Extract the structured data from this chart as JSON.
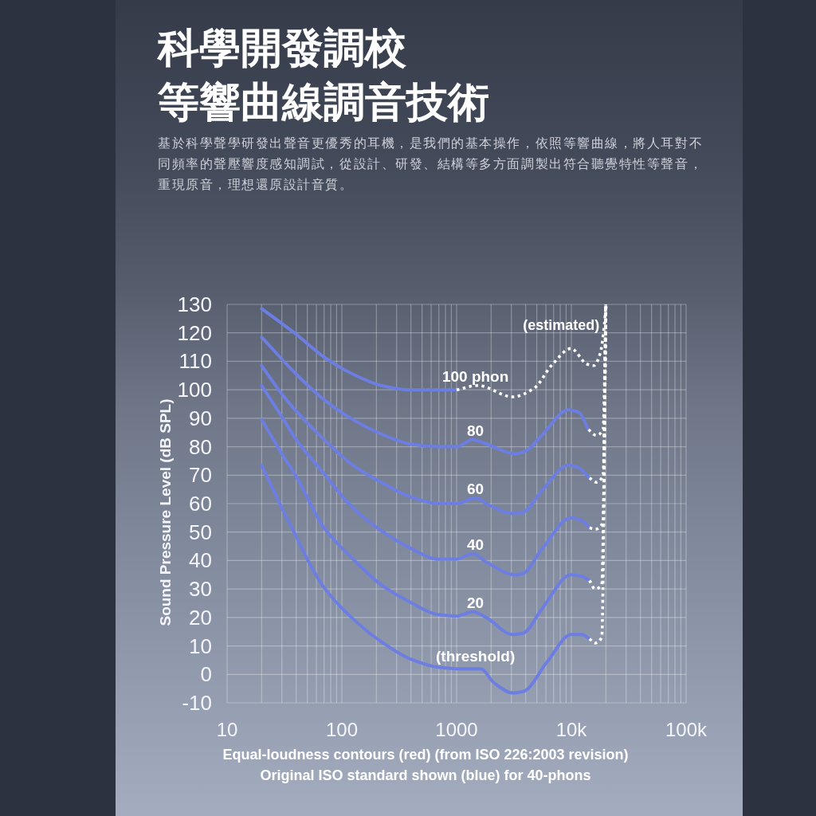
{
  "chart_data": {
    "type": "line",
    "title": "科學開發調校",
    "subtitle": "等響曲線調音技術",
    "annotations": [
      "基於科學聲學研發出聲音更優秀的耳機，是我們的基本操作，依照等響曲線，將人耳對不同頻率的聲壓響度感知調試，從設計、研發、結構等多方面調製出符合聽覺特性等聲音，重現原音，理想還原設計音質。",
      "Equal-loudness contours (red) (from ISO 226:2003 revision)",
      "Original ISO standard shown (blue) for 40-phons"
    ],
    "ylabel": "Sound Pressure Level (dB SPL)",
    "log": "x",
    "xlim": [
      10,
      100000
    ],
    "xticks": [
      10,
      100,
      1000,
      {
        "value": 10000,
        "label": "10k"
      },
      {
        "value": 100000,
        "label": "100k"
      }
    ],
    "ylim": [
      -10,
      130
    ],
    "yticks": [
      -10,
      0,
      10,
      20,
      30,
      40,
      50,
      60,
      70,
      80,
      90,
      100,
      110,
      120,
      130
    ],
    "grid": true,
    "series": [
      {
        "name": "100 phon",
        "color": "#6d7ee2",
        "x": [
          20,
          40,
          70,
          125,
          220,
          390,
          1000
        ],
        "values": [
          128.5,
          119.5,
          111.5,
          105.5,
          101.5,
          100,
          100
        ]
      },
      {
        "name": "(estimated)",
        "color": "#ffffff",
        "line_style": "dotted",
        "x": [
          1000,
          1540,
          3080,
          4720,
          6860,
          9950,
          13700,
          15700,
          17900,
          19400,
          20000
        ],
        "values": [
          100,
          101.5,
          97.5,
          100.5,
          109,
          114.5,
          109,
          108.5,
          113,
          123,
          130
        ]
      },
      {
        "name": "80",
        "color": "#6d7ee2",
        "x": [
          20,
          40,
          70,
          125,
          220,
          390,
          690,
          1000,
          1380,
          1810,
          3250,
          4020,
          5530,
          9440,
          11700,
          14100
        ],
        "values": [
          118.5,
          105.5,
          96.5,
          89.5,
          84.5,
          81,
          80,
          80,
          82.5,
          81,
          77.5,
          78.5,
          84,
          93,
          92,
          86
        ]
      },
      {
        "color": "#ffffff",
        "line_style": "dotted",
        "x": [
          14100,
          16500,
          18900,
          20000
        ],
        "values": [
          86,
          84,
          86,
          130
        ]
      },
      {
        "name": "60",
        "color": "#6d7ee2",
        "x": [
          20,
          30,
          40,
          70,
          125,
          220,
          390,
          690,
          1000,
          1460,
          1910,
          3080,
          3810,
          5530,
          9440,
          11700,
          14400
        ],
        "values": [
          108.5,
          98.5,
          92.5,
          82.5,
          73.5,
          67.5,
          62.5,
          60,
          60,
          62,
          59.5,
          56.5,
          57,
          64.5,
          73.5,
          72.5,
          69
        ]
      },
      {
        "color": "#ffffff",
        "line_style": "dotted",
        "x": [
          14400,
          16500,
          18900,
          20000
        ],
        "values": [
          69,
          67.5,
          70,
          130
        ]
      },
      {
        "name": "40",
        "color": "#6d7ee2",
        "x": [
          20,
          30,
          40,
          70,
          125,
          220,
          390,
          690,
          1000,
          1380,
          1810,
          3250,
          3810,
          5530,
          9950,
          12300,
          14400
        ],
        "values": [
          101.5,
          90.5,
          82.5,
          70.5,
          58.5,
          50.5,
          44.5,
          40.5,
          40.5,
          42.5,
          39.5,
          35,
          35.5,
          44,
          55,
          54,
          51.5
        ]
      },
      {
        "color": "#ffffff",
        "line_style": "dotted",
        "x": [
          14400,
          16100,
          18900,
          20000
        ],
        "values": [
          51.5,
          51,
          53.5,
          130
        ]
      },
      {
        "name": "20",
        "color": "#6d7ee2",
        "x": [
          20,
          30,
          40,
          70,
          125,
          220,
          390,
          690,
          1000,
          1380,
          1810,
          3080,
          3810,
          5530,
          9950,
          12300,
          14400
        ],
        "values": [
          89.5,
          77.5,
          69.5,
          51.5,
          40.5,
          31.5,
          25.5,
          21,
          20.5,
          22,
          20,
          14,
          14.5,
          23,
          35,
          34.5,
          33
        ]
      },
      {
        "color": "#ffffff",
        "line_style": "dotted",
        "x": [
          14400,
          16100,
          18400,
          20000
        ],
        "values": [
          33,
          30,
          31.5,
          130
        ]
      },
      {
        "name": "(threshold)",
        "color": "#6d7ee2",
        "x": [
          20,
          30,
          40,
          53,
          70,
          125,
          220,
          390,
          690,
          1000,
          1380,
          1620,
          2120,
          3080,
          3810,
          6170,
          9950,
          12300,
          14400
        ],
        "values": [
          73.5,
          58.5,
          48.5,
          38.5,
          30.5,
          19.5,
          11.5,
          5.5,
          2.5,
          2,
          2,
          2,
          -3,
          -6.5,
          -6,
          4.5,
          14,
          14,
          12.5
        ]
      },
      {
        "color": "#ffffff",
        "line_style": "dotted",
        "x": [
          14400,
          16100,
          18400,
          20000
        ],
        "values": [
          12.5,
          11,
          13,
          130
        ]
      }
    ]
  }
}
